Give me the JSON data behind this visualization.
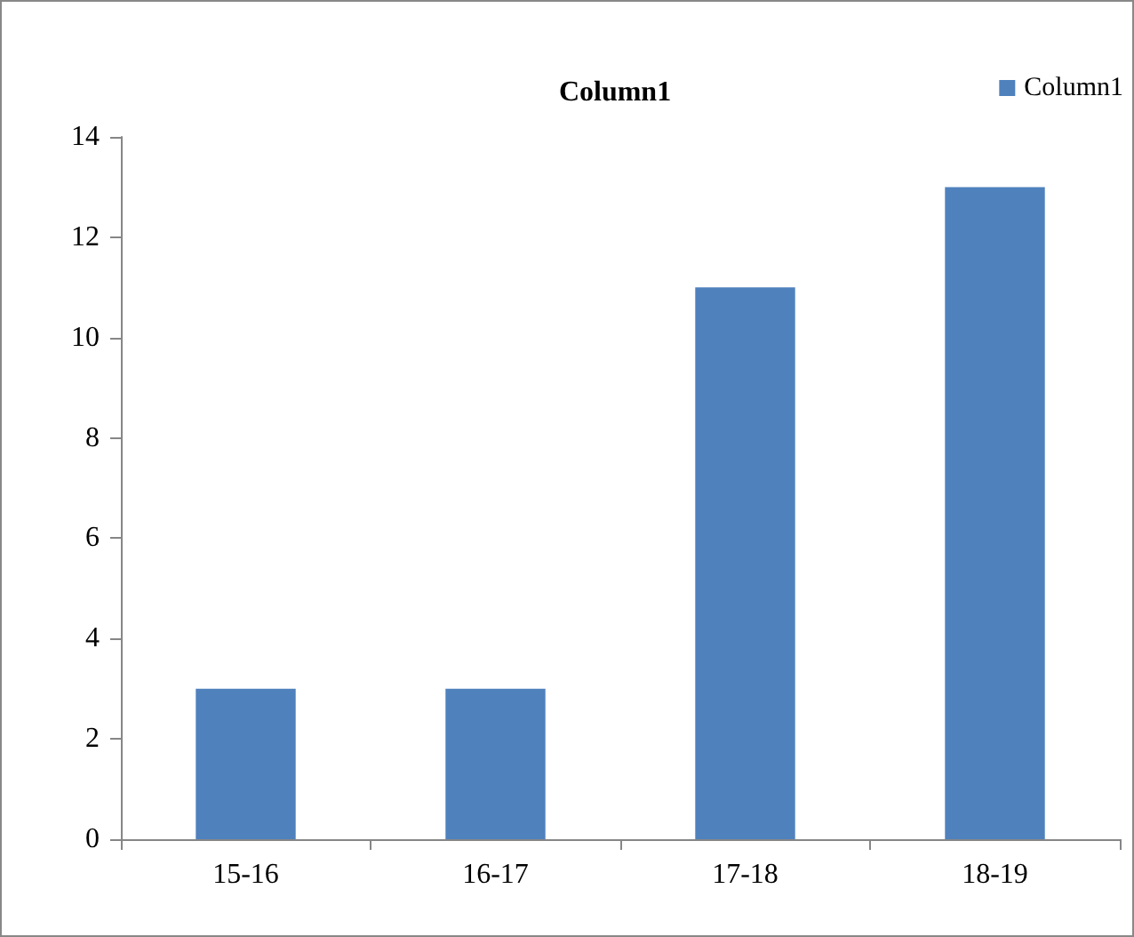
{
  "chart_data": {
    "type": "bar",
    "title": "Column1",
    "categories": [
      "15-16",
      "16-17",
      "17-18",
      "18-19"
    ],
    "series": [
      {
        "name": "Column1",
        "color": "#4f81bd",
        "values": [
          3,
          3,
          11,
          13
        ]
      }
    ],
    "ylim": [
      0,
      14
    ],
    "yticks": [
      0,
      2,
      4,
      6,
      8,
      10,
      12,
      14
    ],
    "grid": false,
    "legend": "top right"
  }
}
